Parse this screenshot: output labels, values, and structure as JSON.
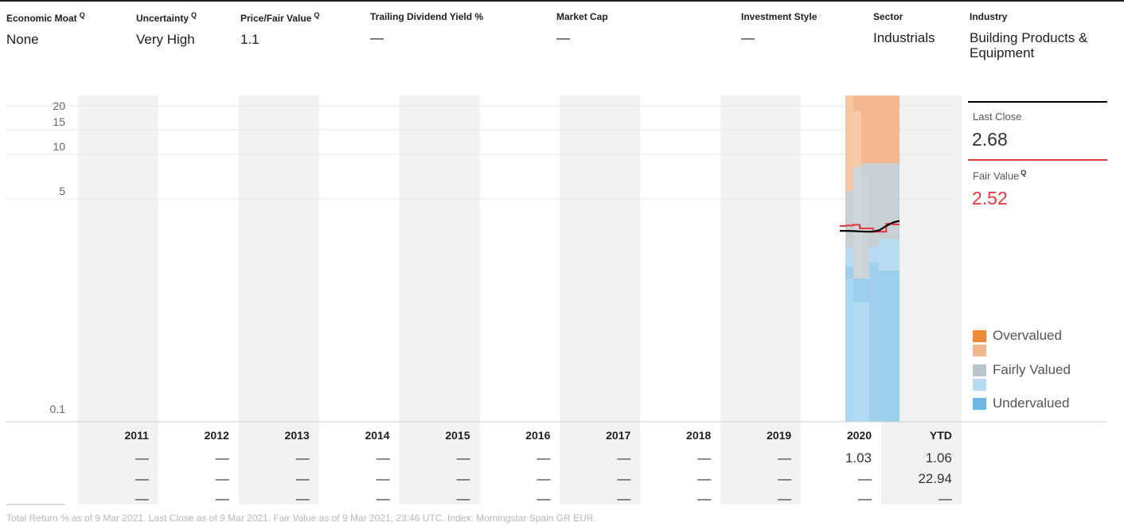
{
  "header": [
    {
      "label": "Economic Moat",
      "has_q": true,
      "value": "None"
    },
    {
      "label": "Uncertainty",
      "has_q": true,
      "value": "Very High"
    },
    {
      "label": "Price/Fair Value",
      "has_q": true,
      "value": "1.1"
    },
    {
      "label": "Trailing Dividend Yield %",
      "has_q": false,
      "value": "—"
    },
    {
      "label": "Market Cap",
      "has_q": false,
      "value": "—"
    },
    {
      "label": "Investment Style",
      "has_q": false,
      "value": "—"
    },
    {
      "label": "Sector",
      "has_q": false,
      "value": "Industrials"
    },
    {
      "label": "Industry",
      "has_q": false,
      "value": "Building Products & Equipment"
    }
  ],
  "q_mark": "Q",
  "sidebar": {
    "last_close_label": "Last Close",
    "last_close_value": "2.68",
    "fair_value_label": "Fair Value",
    "fair_value_value": "2.52"
  },
  "legend": [
    {
      "label": "Overvalued",
      "color": "#ef8a3c"
    },
    {
      "label": "",
      "color": "#f3b88f"
    },
    {
      "label": "Fairly Valued",
      "color": "#b6c6cc"
    },
    {
      "label": "",
      "color": "#b6dbf2"
    },
    {
      "label": "Undervalued",
      "color": "#6bb8e6"
    }
  ],
  "chart_data": {
    "type": "line",
    "y_scale": "log",
    "y_ticks": [
      "20",
      "15",
      "10",
      "5",
      "0.1"
    ],
    "years": [
      "2011",
      "2012",
      "2013",
      "2014",
      "2015",
      "2016",
      "2017",
      "2018",
      "2019",
      "2020",
      "YTD"
    ],
    "last_close_series": [
      2.25,
      2.25,
      2.24,
      2.23,
      2.22,
      2.22,
      2.28,
      2.45,
      2.6,
      2.68
    ],
    "fair_value_series": [
      2.45,
      2.47,
      2.5,
      2.35,
      2.35,
      2.22,
      2.22,
      2.55,
      2.52,
      2.52
    ],
    "colors": {
      "last_close": "#000000",
      "fair_value": "#e0393e",
      "shade": "#f2f2f2"
    },
    "table_rows": [
      [
        "—",
        "—",
        "—",
        "—",
        "—",
        "—",
        "—",
        "—",
        "—",
        "1.03",
        "1.06"
      ],
      [
        "—",
        "—",
        "—",
        "—",
        "—",
        "—",
        "—",
        "—",
        "—",
        "—",
        "22.94"
      ],
      [
        "—",
        "—",
        "—",
        "—",
        "—",
        "—",
        "—",
        "—",
        "—",
        "—",
        "—"
      ]
    ]
  },
  "footnote": "Total Return % as of 9 Mar 2021. Last Close as of 9 Mar 2021. Fair Value as of 9 Mar 2021, 23:46 UTC. Index: Morningstar Spain GR EUR."
}
